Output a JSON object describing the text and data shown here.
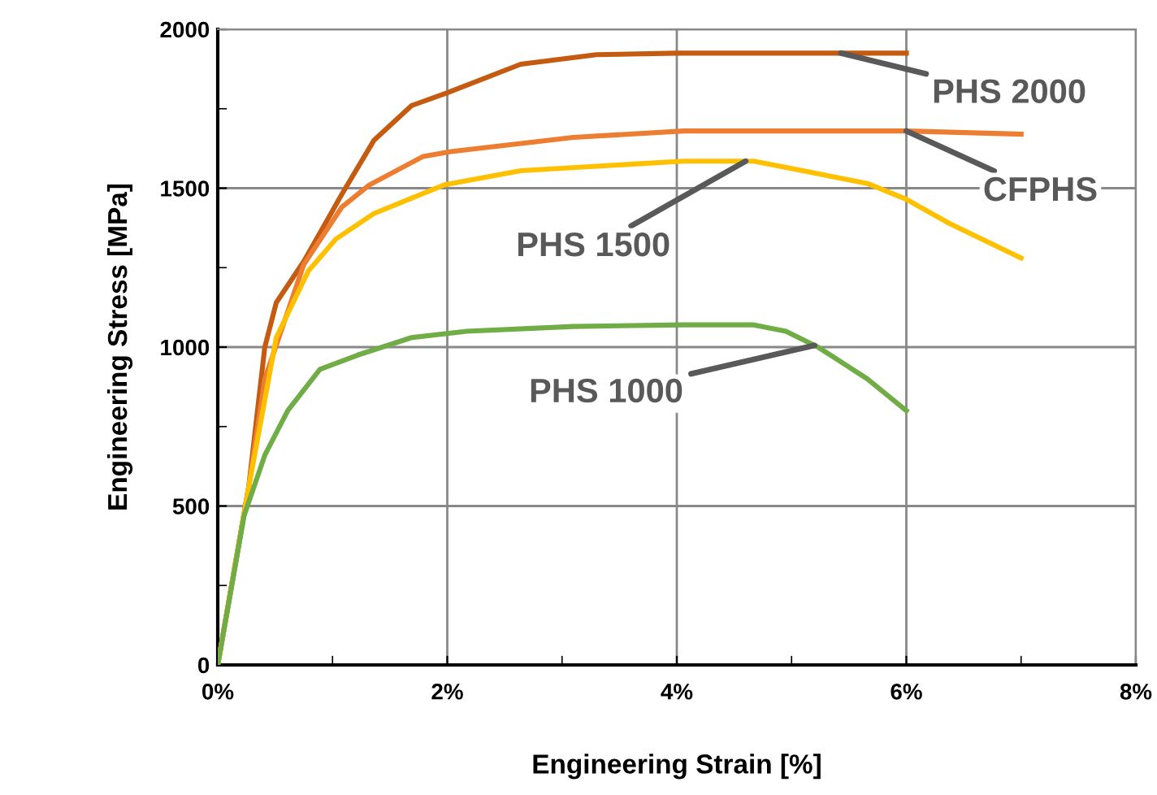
{
  "chart_data": {
    "type": "line",
    "xlabel": "Engineering Strain [%]",
    "ylabel": "Engineering Stress [MPa]",
    "xlim": [
      0,
      8
    ],
    "ylim": [
      0,
      2000
    ],
    "xticks": [
      {
        "value": 0,
        "label": "0%"
      },
      {
        "value": 1,
        "label": null
      },
      {
        "value": 2,
        "label": "2%"
      },
      {
        "value": 3,
        "label": null
      },
      {
        "value": 4,
        "label": "4%"
      },
      {
        "value": 5,
        "label": null
      },
      {
        "value": 6,
        "label": "6%"
      },
      {
        "value": 7,
        "label": null
      },
      {
        "value": 8,
        "label": "8%"
      }
    ],
    "yticks": [
      0,
      {
        "value": 250,
        "label": null
      },
      500,
      {
        "value": 750,
        "label": null
      },
      1000,
      {
        "value": 1250,
        "label": null
      },
      1500,
      {
        "value": 1750,
        "label": null
      },
      2000
    ],
    "grid": true,
    "legend": false,
    "marker": "none",
    "line_style": "solid",
    "series": [
      {
        "name": "PHS 2000",
        "color": "#c55a11",
        "x": [
          0,
          0.27,
          0.41,
          0.51,
          0.75,
          1.08,
          1.36,
          1.69,
          2.0,
          2.64,
          3.3,
          4.0,
          5.0,
          6.0
        ],
        "values": [
          0,
          560,
          1000,
          1140,
          1270,
          1480,
          1650,
          1760,
          1800,
          1890,
          1920,
          1925,
          1925,
          1925
        ]
      },
      {
        "name": "CFPHS",
        "color": "#ed7d31",
        "x": [
          0,
          0.27,
          0.41,
          0.75,
          1.08,
          1.32,
          1.79,
          2.03,
          3.1,
          4.06,
          5.0,
          6.0,
          7.0
        ],
        "values": [
          0,
          560,
          900,
          1260,
          1440,
          1510,
          1600,
          1615,
          1660,
          1680,
          1680,
          1680,
          1670
        ]
      },
      {
        "name": "PHS 1500",
        "color": "#ffc000",
        "x": [
          0,
          0.27,
          0.51,
          0.79,
          1.03,
          1.36,
          1.97,
          2.64,
          4.06,
          4.67,
          5.66,
          6.0,
          6.37,
          7.0
        ],
        "values": [
          0,
          560,
          1030,
          1240,
          1340,
          1420,
          1510,
          1555,
          1585,
          1585,
          1515,
          1465,
          1390,
          1280
        ]
      },
      {
        "name": "PHS 1000",
        "color": "#70ad47",
        "x": [
          0,
          0.23,
          0.41,
          0.61,
          0.89,
          1.22,
          1.69,
          2.17,
          3.1,
          4.06,
          4.67,
          4.95,
          5.23,
          5.66,
          6.0
        ],
        "values": [
          0,
          470,
          660,
          800,
          930,
          975,
          1030,
          1050,
          1065,
          1070,
          1070,
          1050,
          1000,
          900,
          800
        ]
      }
    ]
  }
}
